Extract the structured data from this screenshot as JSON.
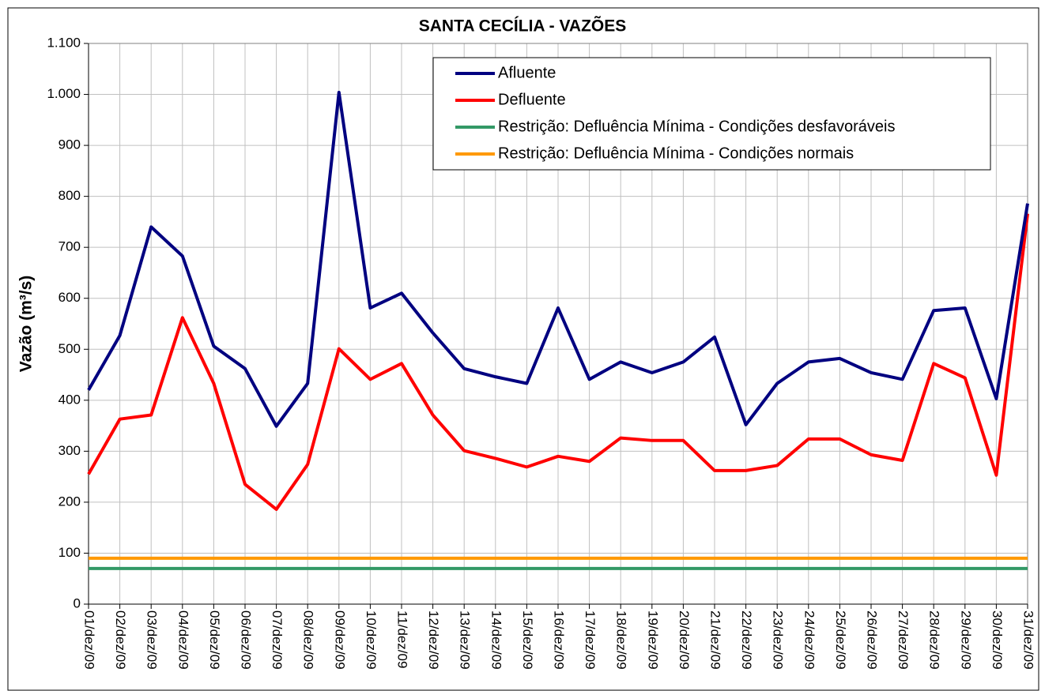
{
  "chart_data": {
    "type": "line",
    "title": "SANTA CECÍLIA - VAZÕES",
    "y_label": "Vazão (m³/s)",
    "categories": [
      "01/dez/09",
      "02/dez/09",
      "03/dez/09",
      "04/dez/09",
      "05/dez/09",
      "06/dez/09",
      "07/dez/09",
      "08/dez/09",
      "09/dez/09",
      "10/dez/09",
      "11/dez/09",
      "12/dez/09",
      "13/dez/09",
      "14/dez/09",
      "15/dez/09",
      "16/dez/09",
      "17/dez/09",
      "18/dez/09",
      "19/dez/09",
      "20/dez/09",
      "21/dez/09",
      "22/dez/09",
      "23/dez/09",
      "24/dez/09",
      "25/dez/09",
      "26/dez/09",
      "27/dez/09",
      "28/dez/09",
      "29/dez/09",
      "30/dez/09",
      "31/dez/09"
    ],
    "series": [
      {
        "name": "Afluente",
        "color": "#000080",
        "values": [
          420,
          527,
          740,
          683,
          506,
          462,
          349,
          433,
          1004,
          581,
          610,
          532,
          462,
          446,
          433,
          581,
          441,
          475,
          454,
          475,
          524,
          352,
          433,
          475,
          482,
          454,
          441,
          576,
          581,
          403,
          786
        ]
      },
      {
        "name": "Defluente",
        "color": "#ff0000",
        "values": [
          255,
          363,
          371,
          562,
          433,
          235,
          186,
          274,
          501,
          441,
          472,
          371,
          301,
          286,
          269,
          290,
          280,
          326,
          321,
          321,
          262,
          262,
          272,
          324,
          324,
          293,
          282,
          472,
          444,
          253,
          766
        ]
      },
      {
        "name": "Restrição: Defluência Mínima - Condições desfavoráveis",
        "color": "#339966",
        "values": [
          70,
          70,
          70,
          70,
          70,
          70,
          70,
          70,
          70,
          70,
          70,
          70,
          70,
          70,
          70,
          70,
          70,
          70,
          70,
          70,
          70,
          70,
          70,
          70,
          70,
          70,
          70,
          70,
          70,
          70,
          70
        ]
      },
      {
        "name": "Restrição: Defluência Mínima - Condições normais",
        "color": "#ff9900",
        "values": [
          90,
          90,
          90,
          90,
          90,
          90,
          90,
          90,
          90,
          90,
          90,
          90,
          90,
          90,
          90,
          90,
          90,
          90,
          90,
          90,
          90,
          90,
          90,
          90,
          90,
          90,
          90,
          90,
          90,
          90,
          90
        ]
      }
    ],
    "ylim": [
      0,
      1100
    ],
    "yticks": [
      0,
      100,
      200,
      300,
      400,
      500,
      600,
      700,
      800,
      900,
      {
        "value": 1000,
        "label": "1.000"
      },
      {
        "value": 1100,
        "label": "1.100"
      }
    ],
    "grid": true,
    "legend": "top-right"
  }
}
